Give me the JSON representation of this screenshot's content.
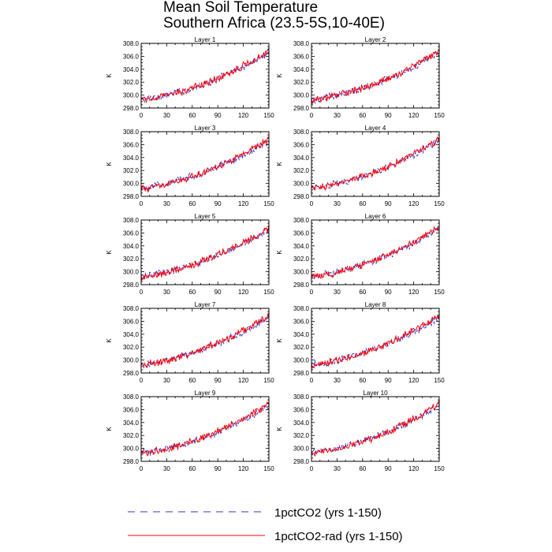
{
  "title_line1": "Mean Soil Temperature",
  "title_line2": "Southern Africa (23.5-5S,10-40E)",
  "legend": [
    {
      "label": "1pctCO2 (yrs 1-150)",
      "color": "#3333cc",
      "dash": true
    },
    {
      "label": "1pctCO2-rad (yrs 1-150)",
      "color": "#ff0000",
      "dash": false
    }
  ],
  "chart_data": {
    "type": "line",
    "ylabel": "K",
    "xticks": [
      0,
      30,
      60,
      90,
      120,
      150
    ],
    "yticks": [
      "298.0",
      "300.0",
      "302.0",
      "304.0",
      "306.0",
      "308.0"
    ],
    "xlim": [
      0,
      150
    ],
    "ylim": [
      298,
      308
    ],
    "panels": [
      {
        "title": "Layer 1",
        "start": [
          299.3,
          299.2
        ],
        "end": [
          306.6,
          306.9
        ]
      },
      {
        "title": "Layer 2",
        "start": [
          299.3,
          299.2
        ],
        "end": [
          306.6,
          306.9
        ]
      },
      {
        "title": "Layer 3",
        "start": [
          299.3,
          299.2
        ],
        "end": [
          306.6,
          306.9
        ]
      },
      {
        "title": "Layer 4",
        "start": [
          299.3,
          299.2
        ],
        "end": [
          306.6,
          306.9
        ]
      },
      {
        "title": "Layer 5",
        "start": [
          299.3,
          299.2
        ],
        "end": [
          306.6,
          306.9
        ]
      },
      {
        "title": "Layer 6",
        "start": [
          299.3,
          299.2
        ],
        "end": [
          306.6,
          306.9
        ]
      },
      {
        "title": "Layer 7",
        "start": [
          299.3,
          299.2
        ],
        "end": [
          306.6,
          306.9
        ]
      },
      {
        "title": "Layer 8",
        "start": [
          299.3,
          299.2
        ],
        "end": [
          306.6,
          306.9
        ]
      },
      {
        "title": "Layer 9",
        "start": [
          299.3,
          299.2
        ],
        "end": [
          306.6,
          306.9
        ]
      },
      {
        "title": "Layer 10",
        "start": [
          299.3,
          299.2
        ],
        "end": [
          306.6,
          306.9
        ]
      }
    ]
  }
}
